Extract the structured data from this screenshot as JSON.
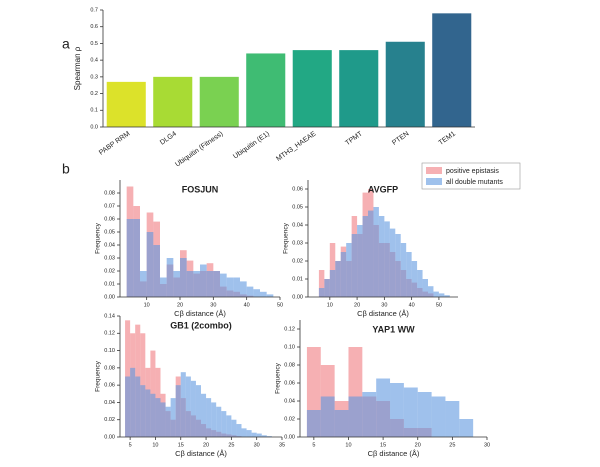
{
  "panels": [
    "a",
    "b"
  ],
  "chart_data": [
    {
      "type": "bar",
      "ylabel": "Spearman ρ",
      "categories": [
        "PABP RRM",
        "DLG4",
        "Ubiquitin (Fitness)",
        "Ubiquitin (E1)",
        "MTH3_HAEAE",
        "TPMT",
        "PTEN",
        "TEM1"
      ],
      "values": [
        0.27,
        0.3,
        0.3,
        0.44,
        0.46,
        0.46,
        0.51,
        0.68
      ],
      "colors": [
        "#dce22a",
        "#a8db34",
        "#7ad151",
        "#3fbc73",
        "#22a884",
        "#1f9a8a",
        "#27818e",
        "#32658e"
      ],
      "ylim": [
        0,
        0.7
      ],
      "yticks": [
        {
          "value": 0,
          "label": "0.0"
        },
        {
          "value": 0.1,
          "label": "0.1"
        },
        {
          "value": 0.2,
          "label": "0.2"
        },
        {
          "value": 0.3,
          "label": "0.3"
        },
        {
          "value": 0.4,
          "label": "0.4"
        },
        {
          "value": 0.5,
          "label": "0.5"
        },
        {
          "value": 0.6,
          "label": "0.6"
        },
        {
          "value": 0.7,
          "label": "0.7"
        }
      ]
    },
    {
      "type": "histogram",
      "title": "FOSJUN",
      "xlabel": "Cβ distance (Å)",
      "ylabel": "Frequency",
      "bins": [
        4,
        6,
        8,
        10,
        12,
        14,
        16,
        18,
        20,
        22,
        24,
        26,
        28,
        30,
        32,
        34,
        36,
        38,
        40,
        42,
        44,
        46,
        48
      ],
      "series": [
        {
          "name": "positive epistasis",
          "color": "#f07b80",
          "values": [
            0.085,
            0.07,
            0.012,
            0.065,
            0.058,
            0.01,
            0.025,
            0.015,
            0.036,
            0.028,
            0.018,
            0.02,
            0.026,
            0.02,
            0.008,
            0.005,
            0.004,
            0.002,
            0.001,
            0,
            0,
            0
          ]
        },
        {
          "name": "all double mutants",
          "color": "#5f97e0",
          "values": [
            0.06,
            0.06,
            0.02,
            0.05,
            0.04,
            0.015,
            0.03,
            0.02,
            0.03,
            0.02,
            0.02,
            0.025,
            0.02,
            0.02,
            0.018,
            0.015,
            0.015,
            0.012,
            0.008,
            0.006,
            0.004,
            0.002
          ]
        }
      ],
      "xlim": [
        2,
        50
      ],
      "xticks": [
        10,
        20,
        30,
        40,
        50
      ],
      "ylim": [
        0,
        0.09
      ],
      "yticks": [
        {
          "value": 0,
          "label": "0.00"
        },
        {
          "value": 0.01,
          "label": "0.01"
        },
        {
          "value": 0.02,
          "label": "0.02"
        },
        {
          "value": 0.03,
          "label": "0.03"
        },
        {
          "value": 0.04,
          "label": "0.04"
        },
        {
          "value": 0.05,
          "label": "0.05"
        },
        {
          "value": 0.06,
          "label": "0.06"
        },
        {
          "value": 0.07,
          "label": "0.07"
        },
        {
          "value": 0.08,
          "label": "0.08"
        }
      ]
    },
    {
      "type": "histogram",
      "title": "AVGFP",
      "xlabel": "Cβ distance (Å)",
      "ylabel": "Frequency",
      "bins": [
        6,
        8,
        10,
        12,
        14,
        16,
        18,
        20,
        22,
        24,
        26,
        28,
        30,
        32,
        34,
        36,
        38,
        40,
        42,
        44,
        46,
        48,
        50,
        52,
        54
      ],
      "series": [
        {
          "values": [
            0.015,
            0.01,
            0.03,
            0.02,
            0.028,
            0.02,
            0.045,
            0.035,
            0.058,
            0.06,
            0.04,
            0.03,
            0.03,
            0.025,
            0.02,
            0.015,
            0.01,
            0.008,
            0.005,
            0.003,
            0.002,
            0,
            0,
            0
          ]
        },
        {
          "values": [
            0.005,
            0.01,
            0.015,
            0.02,
            0.025,
            0.03,
            0.035,
            0.04,
            0.045,
            0.048,
            0.05,
            0.045,
            0.042,
            0.038,
            0.035,
            0.03,
            0.025,
            0.02,
            0.015,
            0.01,
            0.006,
            0.003,
            0.002,
            0.001
          ]
        }
      ],
      "xlim": [
        2,
        57
      ],
      "xticks": [
        10,
        20,
        30,
        40,
        50
      ],
      "ylim": [
        0,
        0.065
      ],
      "yticks": [
        {
          "value": 0,
          "label": "0.00"
        },
        {
          "value": 0.01,
          "label": "0.01"
        },
        {
          "value": 0.02,
          "label": "0.02"
        },
        {
          "value": 0.03,
          "label": "0.03"
        },
        {
          "value": 0.04,
          "label": "0.04"
        },
        {
          "value": 0.05,
          "label": "0.05"
        },
        {
          "value": 0.06,
          "label": "0.06"
        }
      ]
    },
    {
      "type": "histogram",
      "title": "GB1 (2combo)",
      "xlabel": "Cβ distance (Å)",
      "ylabel": "Frequency",
      "bins": [
        4,
        5,
        6,
        7,
        8,
        9,
        10,
        11,
        12,
        13,
        14,
        15,
        16,
        17,
        18,
        19,
        20,
        21,
        22,
        23,
        24,
        25,
        26,
        27,
        28,
        29,
        30,
        31,
        32,
        33
      ],
      "series": [
        {
          "values": [
            0.135,
            0.12,
            0.13,
            0.12,
            0.08,
            0.1,
            0.08,
            0.05,
            0.03,
            0.02,
            0.07,
            0.045,
            0.03,
            0.025,
            0.02,
            0.015,
            0.01,
            0.008,
            0.006,
            0.004,
            0.003,
            0.002,
            0.001,
            0,
            0,
            0,
            0,
            0,
            0
          ]
        },
        {
          "values": [
            0.07,
            0.08,
            0.07,
            0.06,
            0.055,
            0.05,
            0.045,
            0.04,
            0.035,
            0.045,
            0.06,
            0.075,
            0.07,
            0.065,
            0.06,
            0.05,
            0.045,
            0.04,
            0.035,
            0.03,
            0.025,
            0.02,
            0.015,
            0.01,
            0.008,
            0.005,
            0.004,
            0.002,
            0.001
          ]
        }
      ],
      "xlim": [
        3,
        35
      ],
      "xticks": [
        5,
        10,
        15,
        20,
        25,
        30,
        35
      ],
      "ylim": [
        0,
        0.14
      ],
      "yticks": [
        {
          "value": 0,
          "label": "0.00"
        },
        {
          "value": 0.02,
          "label": "0.02"
        },
        {
          "value": 0.04,
          "label": "0.04"
        },
        {
          "value": 0.06,
          "label": "0.06"
        },
        {
          "value": 0.08,
          "label": "0.08"
        },
        {
          "value": 0.1,
          "label": "0.10"
        },
        {
          "value": 0.12,
          "label": "0.12"
        },
        {
          "value": 0.14,
          "label": "0.14"
        }
      ]
    },
    {
      "type": "histogram",
      "title": "YAP1 WW",
      "xlabel": "Cβ distance (Å)",
      "ylabel": "Frequency",
      "bins": [
        4,
        6,
        8,
        10,
        12,
        14,
        16,
        18,
        20,
        22,
        24,
        26,
        28
      ],
      "series": [
        {
          "values": [
            0.1,
            0.08,
            0.04,
            0.1,
            0.045,
            0.04,
            0.02,
            0.01,
            0.01,
            0,
            0,
            0
          ]
        },
        {
          "values": [
            0.03,
            0.045,
            0.03,
            0.045,
            0.05,
            0.065,
            0.06,
            0.055,
            0.05,
            0.045,
            0.04,
            0.02
          ]
        }
      ],
      "xlim": [
        3,
        30
      ],
      "xticks": [
        5,
        10,
        15,
        20,
        25,
        30
      ],
      "ylim": [
        0,
        0.13
      ],
      "yticks": [
        {
          "value": 0,
          "label": "0.00"
        },
        {
          "value": 0.02,
          "label": "0.02"
        },
        {
          "value": 0.04,
          "label": "0.04"
        },
        {
          "value": 0.06,
          "label": "0.06"
        },
        {
          "value": 0.08,
          "label": "0.08"
        },
        {
          "value": 0.1,
          "label": "0.10"
        },
        {
          "value": 0.12,
          "label": "0.12"
        }
      ]
    }
  ]
}
